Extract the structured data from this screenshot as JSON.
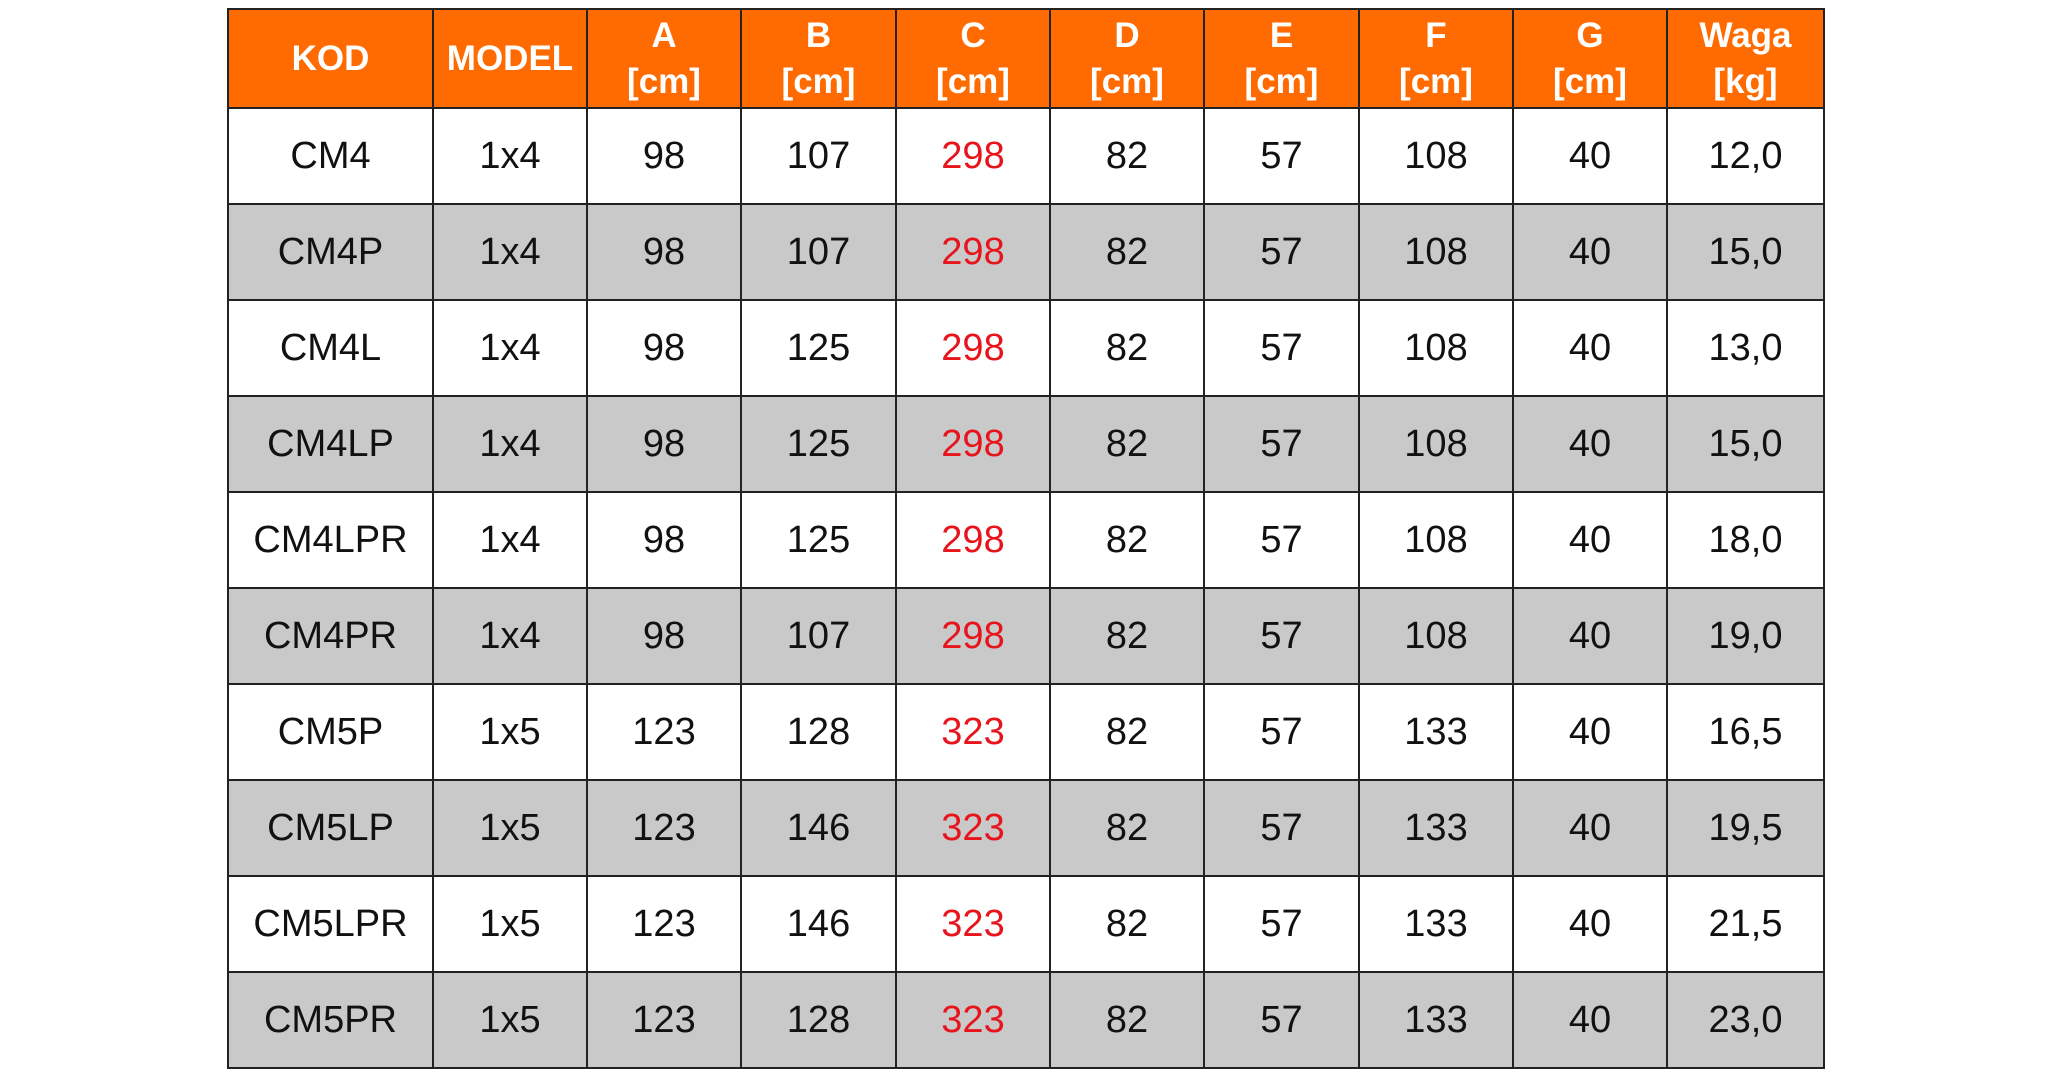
{
  "colors": {
    "header_bg": "#ff6b00",
    "alt_row_bg": "#c9c9c9",
    "column_c_text": "#e8141c"
  },
  "headers": [
    {
      "top": "KOD",
      "unit": ""
    },
    {
      "top": "MODEL",
      "unit": ""
    },
    {
      "top": "A",
      "unit": "[cm]"
    },
    {
      "top": "B",
      "unit": "[cm]"
    },
    {
      "top": "C",
      "unit": "[cm]"
    },
    {
      "top": "D",
      "unit": "[cm]"
    },
    {
      "top": "E",
      "unit": "[cm]"
    },
    {
      "top": "F",
      "unit": "[cm]"
    },
    {
      "top": "G",
      "unit": "[cm]"
    },
    {
      "top": "Waga",
      "unit": "[kg]"
    }
  ],
  "rows": [
    [
      "CM4",
      "1x4",
      "98",
      "107",
      "298",
      "82",
      "57",
      "108",
      "40",
      "12,0"
    ],
    [
      "CM4P",
      "1x4",
      "98",
      "107",
      "298",
      "82",
      "57",
      "108",
      "40",
      "15,0"
    ],
    [
      "CM4L",
      "1x4",
      "98",
      "125",
      "298",
      "82",
      "57",
      "108",
      "40",
      "13,0"
    ],
    [
      "CM4LP",
      "1x4",
      "98",
      "125",
      "298",
      "82",
      "57",
      "108",
      "40",
      "15,0"
    ],
    [
      "CM4LPR",
      "1x4",
      "98",
      "125",
      "298",
      "82",
      "57",
      "108",
      "40",
      "18,0"
    ],
    [
      "CM4PR",
      "1x4",
      "98",
      "107",
      "298",
      "82",
      "57",
      "108",
      "40",
      "19,0"
    ],
    [
      "CM5P",
      "1x5",
      "123",
      "128",
      "323",
      "82",
      "57",
      "133",
      "40",
      "16,5"
    ],
    [
      "CM5LP",
      "1x5",
      "123",
      "146",
      "323",
      "82",
      "57",
      "133",
      "40",
      "19,5"
    ],
    [
      "CM5LPR",
      "1x5",
      "123",
      "146",
      "323",
      "82",
      "57",
      "133",
      "40",
      "21,5"
    ],
    [
      "CM5PR",
      "1x5",
      "123",
      "128",
      "323",
      "82",
      "57",
      "133",
      "40",
      "23,0"
    ]
  ]
}
